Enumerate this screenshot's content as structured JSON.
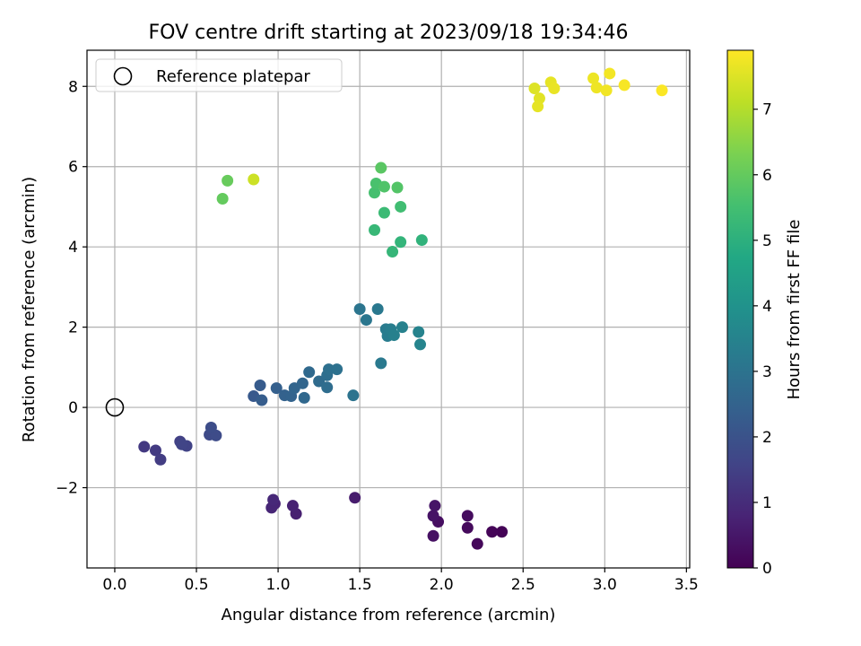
{
  "chart_data": {
    "type": "scatter",
    "title": "FOV centre drift starting at 2023/09/18 19:34:46",
    "xlabel": "Angular distance from reference (arcmin)",
    "ylabel": "Rotation from reference (arcmin)",
    "xlim": [
      -0.17,
      3.52
    ],
    "ylim": [
      -4.0,
      8.9
    ],
    "xticks": [
      0.0,
      0.5,
      1.0,
      1.5,
      2.0,
      2.5,
      3.0,
      3.5
    ],
    "xtick_labels": [
      "0.0",
      "0.5",
      "1.0",
      "1.5",
      "2.0",
      "2.5",
      "3.0",
      "3.5"
    ],
    "yticks": [
      -2,
      0,
      2,
      4,
      6,
      8
    ],
    "ytick_labels": [
      "−2",
      "0",
      "2",
      "4",
      "6",
      "8"
    ],
    "grid": true,
    "legend": {
      "placement": "top-left",
      "label": "Reference platepar"
    },
    "reference_point": {
      "x": 0.0,
      "y": 0.0
    },
    "colorbar": {
      "label": "Hours from first FF file",
      "range": [
        0,
        7.9
      ],
      "ticks": [
        0,
        1,
        2,
        3,
        4,
        5,
        6,
        7
      ],
      "tick_labels": [
        "0",
        "1",
        "2",
        "3",
        "4",
        "5",
        "6",
        "7"
      ],
      "colormap": "viridis"
    },
    "points": [
      {
        "x": 2.37,
        "y": -3.1,
        "h": 0.05
      },
      {
        "x": 2.31,
        "y": -3.1,
        "h": 0.1
      },
      {
        "x": 2.22,
        "y": -3.4,
        "h": 0.15
      },
      {
        "x": 2.16,
        "y": -3.0,
        "h": 0.2
      },
      {
        "x": 2.16,
        "y": -2.7,
        "h": 0.25
      },
      {
        "x": 1.98,
        "y": -2.85,
        "h": 0.3
      },
      {
        "x": 1.95,
        "y": -3.2,
        "h": 0.35
      },
      {
        "x": 1.95,
        "y": -2.7,
        "h": 0.4
      },
      {
        "x": 1.96,
        "y": -2.45,
        "h": 0.45
      },
      {
        "x": 1.47,
        "y": -2.25,
        "h": 0.6
      },
      {
        "x": 1.11,
        "y": -2.65,
        "h": 0.7
      },
      {
        "x": 1.09,
        "y": -2.45,
        "h": 0.75
      },
      {
        "x": 0.98,
        "y": -2.4,
        "h": 0.8
      },
      {
        "x": 0.96,
        "y": -2.5,
        "h": 0.85
      },
      {
        "x": 0.97,
        "y": -2.3,
        "h": 0.9
      },
      {
        "x": 0.18,
        "y": -0.98,
        "h": 1.3
      },
      {
        "x": 0.25,
        "y": -1.07,
        "h": 1.35
      },
      {
        "x": 0.28,
        "y": -1.3,
        "h": 1.4
      },
      {
        "x": 0.4,
        "y": -0.85,
        "h": 1.5
      },
      {
        "x": 0.44,
        "y": -0.96,
        "h": 1.55
      },
      {
        "x": 0.41,
        "y": -0.92,
        "h": 1.6
      },
      {
        "x": 0.58,
        "y": -0.68,
        "h": 1.75
      },
      {
        "x": 0.62,
        "y": -0.7,
        "h": 1.8
      },
      {
        "x": 0.59,
        "y": -0.5,
        "h": 1.85
      },
      {
        "x": 0.85,
        "y": 0.28,
        "h": 2.2
      },
      {
        "x": 0.89,
        "y": 0.55,
        "h": 2.25
      },
      {
        "x": 0.9,
        "y": 0.18,
        "h": 2.3
      },
      {
        "x": 0.99,
        "y": 0.48,
        "h": 2.4
      },
      {
        "x": 1.04,
        "y": 0.3,
        "h": 2.45
      },
      {
        "x": 1.08,
        "y": 0.28,
        "h": 2.5
      },
      {
        "x": 1.1,
        "y": 0.48,
        "h": 2.55
      },
      {
        "x": 1.15,
        "y": 0.6,
        "h": 2.6
      },
      {
        "x": 1.16,
        "y": 0.24,
        "h": 2.65
      },
      {
        "x": 1.19,
        "y": 0.88,
        "h": 2.7
      },
      {
        "x": 1.25,
        "y": 0.65,
        "h": 2.75
      },
      {
        "x": 1.3,
        "y": 0.5,
        "h": 2.8
      },
      {
        "x": 1.3,
        "y": 0.8,
        "h": 2.85
      },
      {
        "x": 1.31,
        "y": 0.95,
        "h": 2.9
      },
      {
        "x": 1.36,
        "y": 0.95,
        "h": 2.95
      },
      {
        "x": 1.46,
        "y": 0.3,
        "h": 3.0
      },
      {
        "x": 1.5,
        "y": 2.45,
        "h": 3.05
      },
      {
        "x": 1.54,
        "y": 2.18,
        "h": 3.1
      },
      {
        "x": 1.61,
        "y": 2.45,
        "h": 3.15
      },
      {
        "x": 1.63,
        "y": 1.1,
        "h": 3.2
      },
      {
        "x": 1.66,
        "y": 1.95,
        "h": 3.25
      },
      {
        "x": 1.67,
        "y": 1.78,
        "h": 3.3
      },
      {
        "x": 1.69,
        "y": 1.95,
        "h": 3.35
      },
      {
        "x": 1.71,
        "y": 1.8,
        "h": 3.4
      },
      {
        "x": 1.76,
        "y": 2.0,
        "h": 3.45
      },
      {
        "x": 1.86,
        "y": 1.88,
        "h": 3.5
      },
      {
        "x": 1.87,
        "y": 1.57,
        "h": 3.55
      },
      {
        "x": 1.88,
        "y": 4.17,
        "h": 5.1
      },
      {
        "x": 1.75,
        "y": 4.12,
        "h": 5.15
      },
      {
        "x": 1.7,
        "y": 3.88,
        "h": 5.2
      },
      {
        "x": 1.59,
        "y": 4.42,
        "h": 5.25
      },
      {
        "x": 1.65,
        "y": 4.85,
        "h": 5.35
      },
      {
        "x": 1.75,
        "y": 5.0,
        "h": 5.45
      },
      {
        "x": 1.59,
        "y": 5.35,
        "h": 5.55
      },
      {
        "x": 1.6,
        "y": 5.58,
        "h": 5.6
      },
      {
        "x": 1.65,
        "y": 5.5,
        "h": 5.7
      },
      {
        "x": 1.73,
        "y": 5.48,
        "h": 5.75
      },
      {
        "x": 1.63,
        "y": 5.97,
        "h": 5.85
      },
      {
        "x": 0.66,
        "y": 5.2,
        "h": 6.0
      },
      {
        "x": 0.69,
        "y": 5.65,
        "h": 6.05
      },
      {
        "x": 0.85,
        "y": 5.68,
        "h": 7.3
      },
      {
        "x": 2.57,
        "y": 7.95,
        "h": 7.5
      },
      {
        "x": 2.6,
        "y": 7.7,
        "h": 7.55
      },
      {
        "x": 2.59,
        "y": 7.5,
        "h": 7.6
      },
      {
        "x": 2.67,
        "y": 8.1,
        "h": 7.62
      },
      {
        "x": 2.69,
        "y": 7.95,
        "h": 7.65
      },
      {
        "x": 2.93,
        "y": 8.2,
        "h": 7.7
      },
      {
        "x": 2.95,
        "y": 7.97,
        "h": 7.72
      },
      {
        "x": 3.01,
        "y": 7.9,
        "h": 7.75
      },
      {
        "x": 3.03,
        "y": 8.32,
        "h": 7.78
      },
      {
        "x": 3.12,
        "y": 8.03,
        "h": 7.82
      },
      {
        "x": 3.35,
        "y": 7.9,
        "h": 7.88
      }
    ]
  }
}
